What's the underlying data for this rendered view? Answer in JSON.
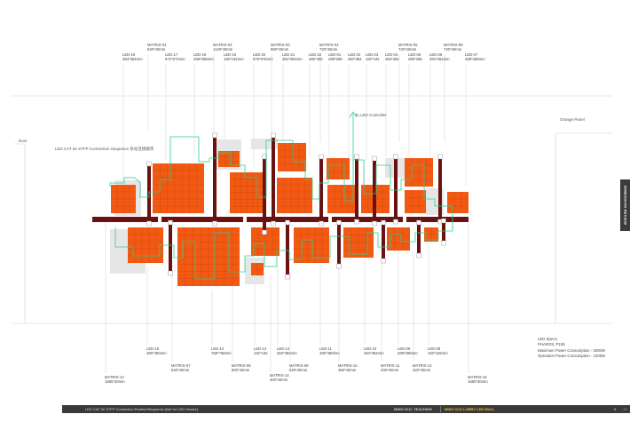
{
  "top_labels": [
    {
      "name": "LED-16",
      "dims": "384*384mm"
    },
    {
      "name": "MATRIX-01",
      "dims": "640*40mm"
    },
    {
      "name": "LED-17",
      "dims": "672*672mm"
    },
    {
      "name": "LED-18",
      "dims": "288*288mm"
    },
    {
      "name": "MATRIX-02",
      "dims": "1120*40mm"
    },
    {
      "name": "LED-19",
      "dims": "192*192mm"
    },
    {
      "name": "LED-20",
      "dims": "576*576mm"
    },
    {
      "name": "MATRIX-03",
      "dims": "960*40mm"
    },
    {
      "name": "LED-21",
      "dims": "384*384mm"
    },
    {
      "name": "LED-22",
      "dims": "480*480"
    },
    {
      "name": "MATRIX-04",
      "dims": "720*40mm"
    },
    {
      "name": "LED-01",
      "dims": "288*288"
    },
    {
      "name": "LED-02",
      "dims": "384*384"
    },
    {
      "name": "LED-03",
      "dims": "192*192"
    },
    {
      "name": "LED-04",
      "dims": "384*384"
    },
    {
      "name": "MATRIX-05",
      "dims": "720*40mm"
    },
    {
      "name": "LED-05",
      "dims": "288*288"
    },
    {
      "name": "LED-06",
      "dims": "384*384mm"
    },
    {
      "name": "MATRIX-06",
      "dims": "720*40mm"
    },
    {
      "name": "LED-07",
      "dims": "288*288mm"
    }
  ],
  "bottom_labels": [
    {
      "name": "MATRIX-13",
      "dims": "1680*40mm"
    },
    {
      "name": "LED-15",
      "dims": "480*480mm"
    },
    {
      "name": "MATRIX-07",
      "dims": "640*40mm"
    },
    {
      "name": "LED-14",
      "dims": "768*768mm"
    },
    {
      "name": "MATRIX-08",
      "dims": "800*40mm"
    },
    {
      "name": "LED-13",
      "dims": "192*192"
    },
    {
      "name": "MATRIX-14",
      "dims": "400*40mm"
    },
    {
      "name": "LED-12",
      "dims": "384*384mm"
    },
    {
      "name": "MATRIX-09",
      "dims": "640*40mm"
    },
    {
      "name": "LED-11",
      "dims": "480*480mm"
    },
    {
      "name": "MATRIX-10",
      "dims": "480*40mm"
    },
    {
      "name": "LED-10",
      "dims": "384*384mm"
    },
    {
      "name": "MATRIX-11",
      "dims": "400*40mm"
    },
    {
      "name": "LED-09",
      "dims": "288*288mm"
    },
    {
      "name": "MATRIX-12",
      "dims": "320*40mm"
    },
    {
      "name": "LED-08",
      "dims": "192*192mm"
    },
    {
      "name": "MATRIX-15",
      "dims": "1680*40mm"
    }
  ],
  "notes": {
    "door": "Door",
    "connection": "LED CAT 5e STFP Connection Sequence 讯号连接顺序",
    "to_controller": "To LED Controller",
    "orange_panel": "Orange Panel"
  },
  "specs": {
    "title": "LED Specs:",
    "model": "PHAROS, P10K",
    "max_power": "Maximum Power Consumption - 4000W",
    "op_power": "Operation Power Consumption - 1200W"
  },
  "side_tab": "DIMENSION REVIEW",
  "footer": {
    "caption": "LED CAT 5e STFP Connection Routine/Sequence (Not for LED Vendor)",
    "project": "MING OLD. TEACHING",
    "subject": "MING OLD LOBBY LED WALL",
    "page": "8",
    "total": "15"
  },
  "colors": {
    "panel": "#f25a13",
    "grid": "#c8460c",
    "bar": "#6a1111",
    "cable": "#2bd08a",
    "shadow": "#e6e6e6"
  }
}
